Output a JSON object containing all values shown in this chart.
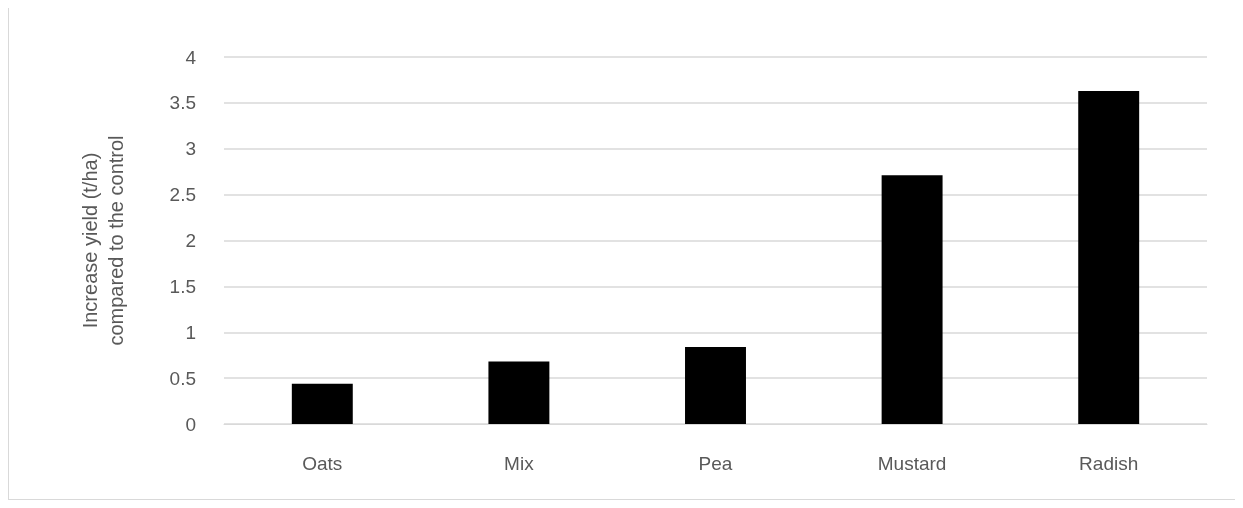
{
  "chart_data": {
    "type": "bar",
    "ylabel": "Increase yield (t/ha)\ncompared to the control",
    "categories": [
      "Oats",
      "Mix",
      "Pea",
      "Mustard",
      "Radish"
    ],
    "values": [
      0.44,
      0.68,
      0.84,
      2.71,
      3.63
    ],
    "color": "#000000",
    "ylim": [
      0,
      4
    ],
    "yticks": [
      0,
      0.5,
      1,
      1.5,
      2,
      2.5,
      3,
      3.5,
      4
    ],
    "grid": "y"
  }
}
